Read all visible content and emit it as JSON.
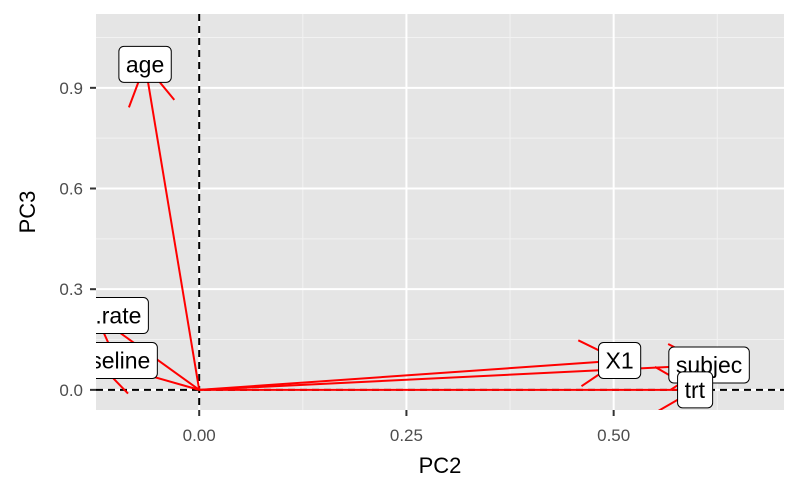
{
  "chart_data": {
    "type": "scatter",
    "title": "",
    "xlabel": "PC2",
    "ylabel": "PC3",
    "xlim": [
      -0.1245,
      0.7055
    ],
    "ylim": [
      -0.06,
      1.12
    ],
    "x_ticks": [
      0.0,
      0.25,
      0.5
    ],
    "x_tick_labels": [
      "0.00",
      "0.25",
      "0.50"
    ],
    "y_ticks": [
      0.0,
      0.3,
      0.6,
      0.9
    ],
    "y_tick_labels": [
      "0.0",
      "0.3",
      "0.6",
      "0.9"
    ],
    "reference_lines": {
      "x": 0,
      "y": 0,
      "style": "dashed"
    },
    "grid": true,
    "vector_color": "#ff0000",
    "vectors": [
      {
        "label": "age",
        "x": -0.0653,
        "y": 0.97
      },
      {
        "label": "zure.rate",
        "x": -0.1245,
        "y": 0.2215
      },
      {
        "label": "vsbaseline",
        "x": -0.1245,
        "y": 0.0875
      },
      {
        "label": "X1",
        "x": 0.5072,
        "y": 0.0875
      },
      {
        "label": "subjec",
        "x": 0.6151,
        "y": 0.0741
      },
      {
        "label": "trt",
        "x": 0.5979,
        "y": 0.0
      }
    ]
  },
  "colors": {
    "panel_background": "#e5e5e5",
    "grid_major": "#ffffff",
    "grid_minor": "#f2f2f2",
    "reference_line": "#000000",
    "label_background": "#ffffff"
  }
}
